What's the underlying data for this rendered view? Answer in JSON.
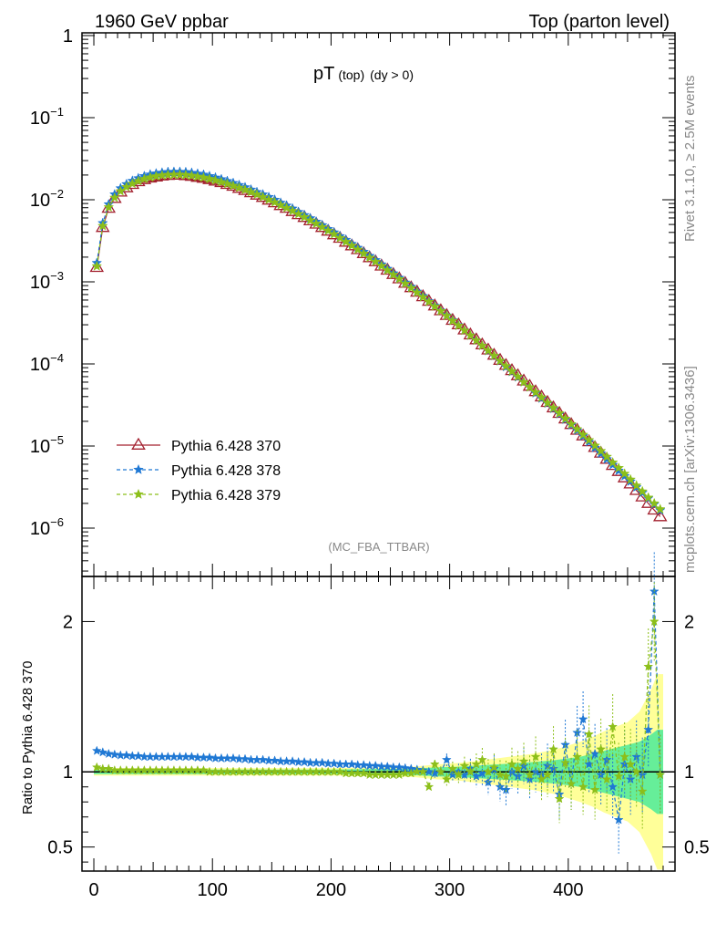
{
  "header": {
    "left": "1960 GeV ppbar",
    "right": "Top (parton level)"
  },
  "side_text": {
    "rivet": "Rivet 3.1.10, ≥ 2.5M events",
    "mcplots": "mcplots.cern.ch [arXiv:1306.3436]"
  },
  "chart_data": [
    {
      "type": "line",
      "title_main": "pT",
      "title_sub1": "(top)",
      "title_sub2": "(dy > 0)",
      "analysis_label": "(MC_FBA_TTBAR)",
      "xlabel": "",
      "ylabel": "",
      "xlim": [
        -10,
        490
      ],
      "ylim": [
        3e-07,
        1
      ],
      "yscale": "log",
      "legend_position": "bottom-left",
      "y_tick_labels": [
        "1",
        "10^-1",
        "10^-2",
        "10^-3",
        "10^-4",
        "10^-5",
        "10^-6"
      ],
      "x": [
        2.5,
        7.5,
        12.5,
        17.5,
        22.5,
        27.5,
        32.5,
        37.5,
        42.5,
        47.5,
        52.5,
        57.5,
        62.5,
        67.5,
        72.5,
        77.5,
        82.5,
        87.5,
        92.5,
        97.5,
        102.5,
        107.5,
        112.5,
        117.5,
        122.5,
        127.5,
        132.5,
        137.5,
        142.5,
        147.5,
        152.5,
        157.5,
        162.5,
        167.5,
        172.5,
        177.5,
        182.5,
        187.5,
        192.5,
        197.5,
        202.5,
        207.5,
        212.5,
        217.5,
        222.5,
        227.5,
        232.5,
        237.5,
        242.5,
        247.5,
        252.5,
        257.5,
        262.5,
        267.5,
        272.5,
        277.5,
        282.5,
        287.5,
        292.5,
        297.5,
        302.5,
        307.5,
        312.5,
        317.5,
        322.5,
        327.5,
        332.5,
        337.5,
        342.5,
        347.5,
        352.5,
        357.5,
        362.5,
        367.5,
        372.5,
        377.5,
        382.5,
        387.5,
        392.5,
        397.5,
        402.5,
        407.5,
        412.5,
        417.5,
        422.5,
        427.5,
        432.5,
        437.5,
        442.5,
        447.5,
        452.5,
        457.5,
        462.5,
        467.5,
        472.5,
        477.5
      ],
      "series": [
        {
          "name": "Pythia 6.428 370",
          "color": "#a3202f",
          "marker": "triangle",
          "dash": "solid",
          "values": [
            0.0015,
            0.0046,
            0.0079,
            0.0104,
            0.0124,
            0.014,
            0.0154,
            0.0166,
            0.0176,
            0.0184,
            0.019,
            0.0195,
            0.0198,
            0.0199,
            0.0199,
            0.0197,
            0.0193,
            0.0188,
            0.0183,
            0.0176,
            0.0169,
            0.0162,
            0.0154,
            0.0146,
            0.0138,
            0.013,
            0.0122,
            0.0114,
            0.0107,
            0.0099,
            0.0092,
            0.0085,
            0.0079,
            0.0072,
            0.0066,
            0.0061,
            0.00555,
            0.00505,
            0.0046,
            0.00415,
            0.00375,
            0.0034,
            0.00305,
            0.00275,
            0.00247,
            0.00221,
            0.00197,
            0.00176,
            0.00156,
            0.00139,
            0.00123,
            0.00109,
            0.00096,
            0.00085,
            0.00075,
            0.00066,
            0.00058,
            0.00051,
            0.000445,
            0.00039,
            0.00034,
            0.0003,
            0.00026,
            0.000226,
            0.000197,
            0.000171,
            0.000148,
            0.000128,
            0.000111,
            9.6e-05,
            8.3e-05,
            7.2e-05,
            6.2e-05,
            5.35e-05,
            4.6e-05,
            3.96e-05,
            3.4e-05,
            2.92e-05,
            2.5e-05,
            2.14e-05,
            1.83e-05,
            1.56e-05,
            1.33e-05,
            1.13e-05,
            9.6e-06,
            8.2e-06,
            6.9e-06,
            5.8e-06,
            4.9e-06,
            4.1e-06,
            3.45e-06,
            2.88e-06,
            2.4e-06,
            2e-06,
            1.66e-06,
            1.38e-06
          ]
        },
        {
          "name": "Pythia 6.428 378",
          "color": "#1f78d4",
          "marker": "star",
          "dash": "dashed",
          "values": [
            0.0017,
            0.0052,
            0.0088,
            0.0116,
            0.0138,
            0.0155,
            0.017,
            0.0183,
            0.0194,
            0.0203,
            0.0209,
            0.0214,
            0.0218,
            0.0219,
            0.0219,
            0.0217,
            0.0213,
            0.0208,
            0.0202,
            0.0194,
            0.0186,
            0.0178,
            0.0169,
            0.016,
            0.0151,
            0.0142,
            0.0133,
            0.0124,
            0.0116,
            0.0108,
            0.01,
            0.0092,
            0.0085,
            0.0078,
            0.0071,
            0.0065,
            0.00595,
            0.0054,
            0.0049,
            0.0044,
            0.004,
            0.0036,
            0.00325,
            0.0029,
            0.0026,
            0.00232,
            0.00207,
            0.00184,
            0.00163,
            0.00144,
            0.00127,
            0.00112,
            0.00098,
            0.00087,
            0.00076,
            0.00067,
            0.00058,
            0.00051,
            0.000445,
            0.00039,
            0.00034,
            0.000295,
            0.000255,
            0.000222,
            0.000193,
            0.000167,
            0.000144,
            0.000125,
            0.000108,
            9.2e-05,
            8e-05,
            6.9e-05,
            6e-05,
            5.2e-05,
            4.4e-05,
            3.8e-05,
            3.3e-05,
            2.85e-05,
            2.45e-05,
            2.1e-05,
            1.8e-05,
            1.55e-05,
            1.32e-05,
            1.12e-05,
            9.5e-06,
            8.1e-06,
            6.9e-06,
            5.9e-06,
            5e-06,
            4.3e-06,
            3.7e-06,
            3.15e-06,
            2.7e-06,
            2.3e-06,
            1.95e-06,
            1.65e-06
          ]
        },
        {
          "name": "Pythia 6.428 379",
          "color": "#8cbf1a",
          "marker": "star",
          "dash": "dashed",
          "values": [
            0.00155,
            0.0048,
            0.0081,
            0.0106,
            0.0127,
            0.0143,
            0.0157,
            0.0169,
            0.0179,
            0.0187,
            0.0193,
            0.0198,
            0.0201,
            0.0202,
            0.0202,
            0.02,
            0.0196,
            0.0191,
            0.0186,
            0.0179,
            0.0172,
            0.0164,
            0.0156,
            0.0148,
            0.014,
            0.0132,
            0.0124,
            0.0116,
            0.0108,
            0.01,
            0.0093,
            0.0086,
            0.00795,
            0.0073,
            0.0067,
            0.00615,
            0.0056,
            0.0051,
            0.00465,
            0.0042,
            0.0038,
            0.00342,
            0.00307,
            0.00276,
            0.00247,
            0.00221,
            0.00197,
            0.00176,
            0.00156,
            0.00138,
            0.00122,
            0.00108,
            0.00095,
            0.00084,
            0.00074,
            0.00065,
            0.00057,
            0.0005,
            0.00044,
            0.000385,
            0.000335,
            0.000292,
            0.000255,
            0.000222,
            0.000193,
            0.000167,
            0.000145,
            0.000126,
            0.000109,
            9.4e-05,
            8.1e-05,
            7e-05,
            6e-05,
            5.2e-05,
            4.5e-05,
            3.9e-05,
            3.35e-05,
            2.9e-05,
            2.5e-05,
            2.15e-05,
            1.85e-05,
            1.6e-05,
            1.37e-05,
            1.18e-05,
            1.01e-05,
            8.7e-06,
            7.4e-06,
            6.3e-06,
            5.4e-06,
            4.6e-06,
            3.9e-06,
            3.3e-06,
            2.8e-06,
            2.35e-06,
            2e-06,
            1.7e-06
          ]
        }
      ]
    },
    {
      "type": "line",
      "xlabel": "",
      "ylabel": "Ratio to Pythia 6.428 370",
      "xlim": [
        -10,
        490
      ],
      "ylim": [
        0.34,
        2.3
      ],
      "x_tick_labels": [
        "0",
        "100",
        "200",
        "300",
        "400"
      ],
      "y_tick_labels": [
        "0.5",
        "1",
        "2"
      ],
      "reference_band": {
        "x": [
          0,
          50,
          100,
          150,
          200,
          250,
          270,
          290,
          310,
          330,
          350,
          370,
          390,
          410,
          420,
          430,
          440,
          450,
          460,
          470,
          475,
          480
        ],
        "yellow_half_width": [
          0.025,
          0.025,
          0.025,
          0.025,
          0.025,
          0.03,
          0.035,
          0.05,
          0.06,
          0.08,
          0.1,
          0.12,
          0.15,
          0.2,
          0.23,
          0.27,
          0.3,
          0.33,
          0.4,
          0.55,
          0.65,
          0.65
        ],
        "green_half_width": [
          0.015,
          0.015,
          0.015,
          0.015,
          0.015,
          0.02,
          0.022,
          0.03,
          0.035,
          0.045,
          0.055,
          0.065,
          0.08,
          0.1,
          0.12,
          0.14,
          0.16,
          0.18,
          0.2,
          0.25,
          0.28,
          0.28
        ]
      },
      "series": [
        {
          "name": "Pythia 6.428 378",
          "color": "#1f78d4",
          "values": [
            1.14,
            1.13,
            1.12,
            1.115,
            1.11,
            1.11,
            1.105,
            1.105,
            1.1,
            1.1,
            1.1,
            1.1,
            1.1,
            1.1,
            1.1,
            1.1,
            1.1,
            1.095,
            1.095,
            1.095,
            1.09,
            1.09,
            1.09,
            1.09,
            1.085,
            1.085,
            1.08,
            1.08,
            1.08,
            1.075,
            1.075,
            1.07,
            1.07,
            1.07,
            1.065,
            1.065,
            1.06,
            1.06,
            1.06,
            1.055,
            1.055,
            1.05,
            1.05,
            1.05,
            1.045,
            1.045,
            1.04,
            1.04,
            1.035,
            1.035,
            1.03,
            1.03,
            1.025,
            1.02,
            1.015,
            1.01,
            1.0,
            0.99,
            1.0,
            1.08,
            0.98,
            1.0,
            0.98,
            1.02,
            0.97,
            0.99,
            0.93,
            1.02,
            0.9,
            0.88,
            1.0,
            0.97,
            1.04,
            0.95,
            1.0,
            0.98,
            1.04,
            1.02,
            0.85,
            1.18,
            0.92,
            1.26,
            1.35,
            1.05,
            1.12,
            0.98,
            1.08,
            0.9,
            0.68,
            1.05,
            0.95,
            1.1,
            0.98,
            1.28,
            2.2,
            0.98
          ]
        },
        {
          "name": "Pythia 6.428 379",
          "color": "#8cbf1a",
          "values": [
            1.03,
            1.02,
            1.02,
            1.01,
            1.01,
            1.01,
            1.01,
            1.01,
            1.01,
            1.01,
            1.01,
            1.01,
            1.01,
            1.01,
            1.01,
            1.01,
            1.01,
            1.01,
            1.01,
            1.0,
            1.0,
            1.0,
            1.0,
            1.0,
            1.0,
            1.0,
            1.0,
            1.0,
            1.0,
            1.0,
            1.0,
            1.0,
            1.0,
            1.0,
            1.0,
            1.0,
            1.0,
            1.0,
            1.0,
            1.0,
            1.0,
            1.0,
            0.99,
            0.99,
            0.99,
            0.99,
            0.98,
            0.98,
            0.98,
            0.98,
            0.98,
            0.98,
            0.99,
            0.99,
            1.0,
            1.0,
            0.9,
            1.05,
            1.0,
            0.95,
            1.02,
            0.98,
            1.04,
            1.0,
            1.05,
            1.08,
            1.0,
            1.03,
            0.98,
            0.97,
            1.05,
            1.02,
            1.07,
            0.98,
            1.1,
            0.95,
            0.98,
            1.15,
            0.82,
            1.06,
            0.92,
            1.1,
            0.9,
            1.25,
            0.88,
            1.15,
            0.95,
            1.3,
            0.97,
            1.1,
            1.05,
            1.0,
            0.87,
            1.7,
            2.0,
            0.98
          ]
        }
      ]
    }
  ]
}
